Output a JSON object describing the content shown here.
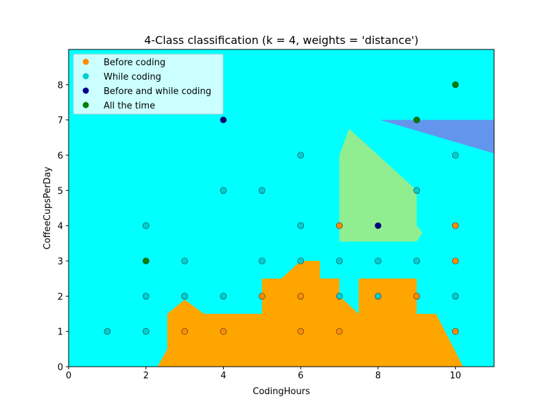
{
  "chart_data": {
    "type": "scatter",
    "title": "4-Class classification (k = 4, weights = 'distance')",
    "xlabel": "CodingHours",
    "ylabel": "CoffeeCupsPerDay",
    "xlim": [
      0,
      11
    ],
    "ylim": [
      0,
      9
    ],
    "xticks": [
      "0",
      "2",
      "4",
      "6",
      "8",
      "10"
    ],
    "yticks": [
      "0",
      "1",
      "2",
      "3",
      "4",
      "5",
      "6",
      "7",
      "8"
    ],
    "grid": false,
    "legend_position": "top-left",
    "background_region_color": "#00ffff",
    "regions": [
      {
        "class": "Before coding",
        "color": "#ffa500",
        "polygon": [
          [
            2.3,
            0
          ],
          [
            2.55,
            0.5
          ],
          [
            2.55,
            1.5
          ],
          [
            3.0,
            1.9
          ],
          [
            3.5,
            1.5
          ],
          [
            5.0,
            1.5
          ],
          [
            5.0,
            2.5
          ],
          [
            5.5,
            2.5
          ],
          [
            6.0,
            3.0
          ],
          [
            6.5,
            3.0
          ],
          [
            6.5,
            2.5
          ],
          [
            7.0,
            2.5
          ],
          [
            7.0,
            2.0
          ],
          [
            7.5,
            1.5
          ],
          [
            7.5,
            2.5
          ],
          [
            9.0,
            2.5
          ],
          [
            9.0,
            1.5
          ],
          [
            9.5,
            1.5
          ],
          [
            10.2,
            0
          ]
        ]
      },
      {
        "class": "All the time",
        "color": "#90ee90",
        "polygon": [
          [
            7.0,
            3.55
          ],
          [
            9.0,
            3.55
          ],
          [
            9.15,
            3.8
          ],
          [
            9.0,
            4.0
          ],
          [
            9.0,
            5.0
          ],
          [
            7.25,
            6.75
          ],
          [
            7.0,
            6.0
          ]
        ]
      },
      {
        "class": "Before and while coding",
        "color": "#6495ed",
        "polygon": [
          [
            8.05,
            7.0
          ],
          [
            11.0,
            7.0
          ],
          [
            11.0,
            6.05
          ]
        ]
      }
    ],
    "series": [
      {
        "name": "Before coding",
        "color": "#ff8c00",
        "points": [
          [
            3,
            1
          ],
          [
            4,
            1
          ],
          [
            6,
            1
          ],
          [
            7,
            1
          ],
          [
            10,
            1
          ],
          [
            5,
            2
          ],
          [
            6,
            2
          ],
          [
            9,
            2
          ],
          [
            7,
            4
          ],
          [
            10,
            4
          ],
          [
            10,
            3
          ]
        ]
      },
      {
        "name": "While coding",
        "color": "#00ced1",
        "points": [
          [
            1,
            1
          ],
          [
            2,
            1
          ],
          [
            2,
            2
          ],
          [
            2,
            4
          ],
          [
            3,
            2
          ],
          [
            3,
            3
          ],
          [
            4,
            2
          ],
          [
            4,
            5
          ],
          [
            5,
            3
          ],
          [
            5,
            5
          ],
          [
            6,
            3
          ],
          [
            6,
            4
          ],
          [
            6,
            6
          ],
          [
            7,
            2
          ],
          [
            7,
            3
          ],
          [
            8,
            2
          ],
          [
            8,
            3
          ],
          [
            9,
            3
          ],
          [
            9,
            5
          ],
          [
            10,
            2
          ],
          [
            10,
            6
          ]
        ]
      },
      {
        "name": "Before and while coding",
        "color": "#00008b",
        "points": [
          [
            4,
            7
          ],
          [
            8,
            4
          ]
        ]
      },
      {
        "name": "All the time",
        "color": "#008000",
        "points": [
          [
            2,
            3
          ],
          [
            9,
            7
          ],
          [
            10,
            8
          ]
        ]
      }
    ]
  }
}
